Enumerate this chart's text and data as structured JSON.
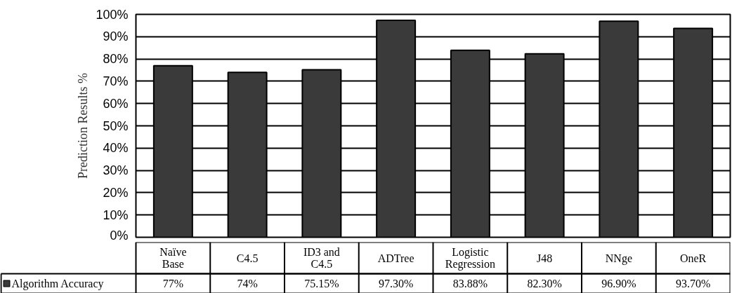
{
  "chart_data": {
    "type": "bar",
    "ylabel": "Prediction Results %",
    "categories": [
      "Naïve Base",
      "C4.5",
      "ID3 and C4.5",
      "ADTree",
      "Logistic Regression",
      "J48",
      "NNge",
      "OneR"
    ],
    "series": [
      {
        "name": "Algorithm Accuracy",
        "color": "#3a3a3a",
        "values": [
          77,
          74,
          75.15,
          97.3,
          83.88,
          82.3,
          96.9,
          93.7
        ],
        "value_labels": [
          "77%",
          "74%",
          "75.15%",
          "97.30%",
          "83.88%",
          "82.30%",
          "96.90%",
          "93.70%"
        ]
      }
    ],
    "ylim": [
      0,
      100
    ],
    "yticks": [
      {
        "value": 0,
        "label": "0%"
      },
      {
        "value": 10,
        "label": "10%"
      },
      {
        "value": 20,
        "label": "20%"
      },
      {
        "value": 30,
        "label": "30%"
      },
      {
        "value": 40,
        "label": "40%"
      },
      {
        "value": 50,
        "label": "50%"
      },
      {
        "value": 60,
        "label": "60%"
      },
      {
        "value": 70,
        "label": "70%"
      },
      {
        "value": 80,
        "label": "80%"
      },
      {
        "value": 90,
        "label": "90%"
      },
      {
        "value": 100,
        "label": "100%"
      }
    ],
    "grid": "y",
    "legend": "bottom"
  }
}
